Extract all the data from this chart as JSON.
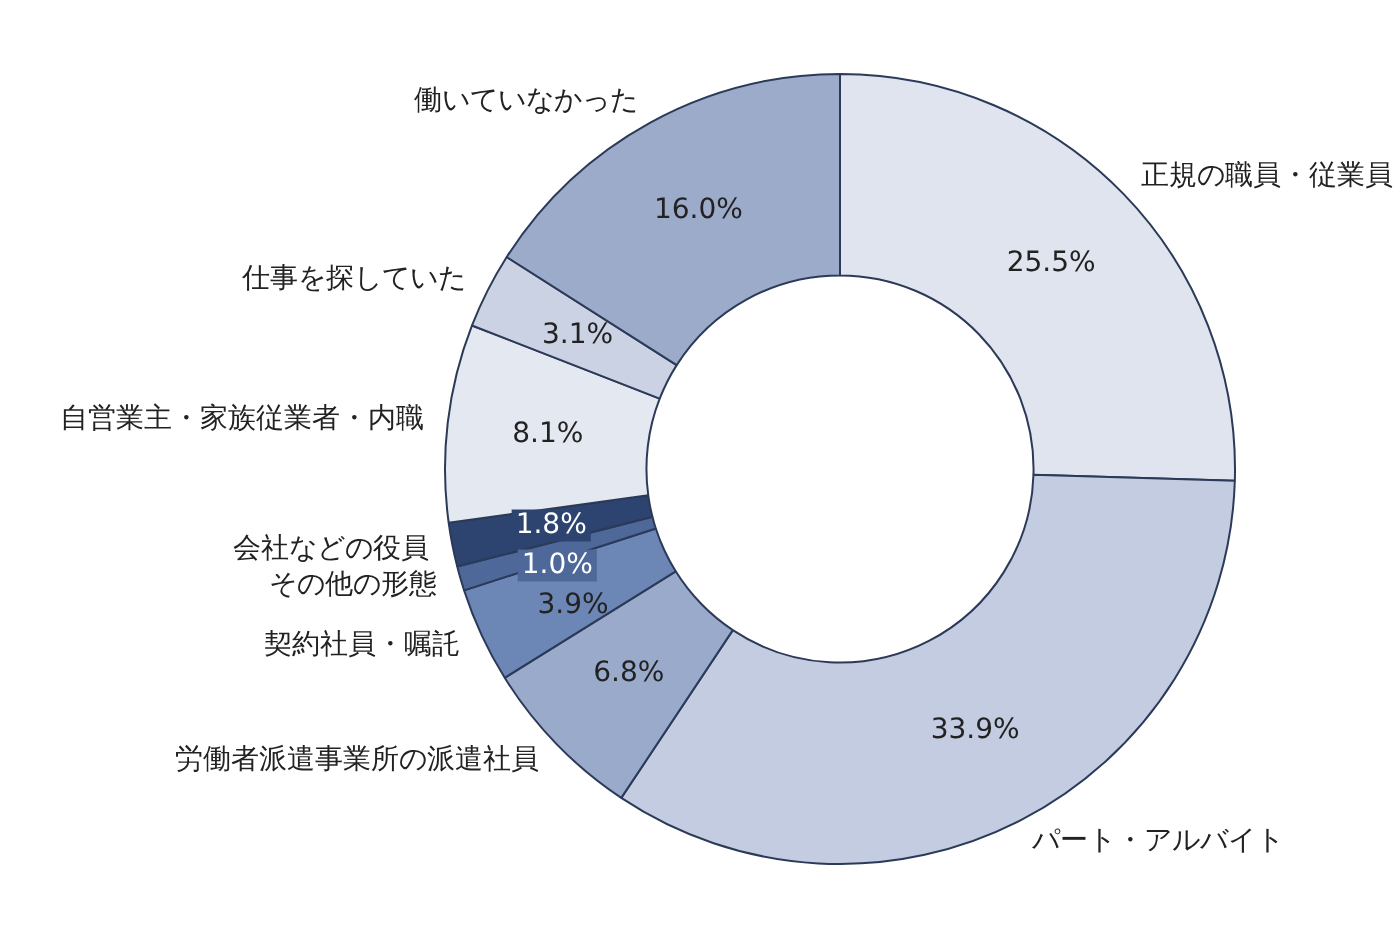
{
  "chart_data": {
    "type": "donut",
    "categories": [
      "正規の職員・従業員",
      "パート・アルバイト",
      "労働者派遣事業所の派遣社員",
      "契約社員・嘱託",
      "その他の形態",
      "会社などの役員",
      "自営業主・家族従業者・内職",
      "仕事を探していた",
      "働いていなかった"
    ],
    "values": [
      25.5,
      33.9,
      6.8,
      3.9,
      1.0,
      1.8,
      8.1,
      3.1,
      16.0
    ],
    "value_labels": [
      "25.5%",
      "33.9%",
      "6.8%",
      "3.9%",
      "1.0%",
      "1.8%",
      "8.1%",
      "3.1%",
      "16.0%"
    ],
    "colors": [
      "#dfe4ee",
      "#c3cce0",
      "#9aaacb",
      "#6c86b6",
      "#4e6899",
      "#2d4470",
      "#e4e8f0",
      "#cad2e3",
      "#9dabcb"
    ],
    "legend": false
  }
}
